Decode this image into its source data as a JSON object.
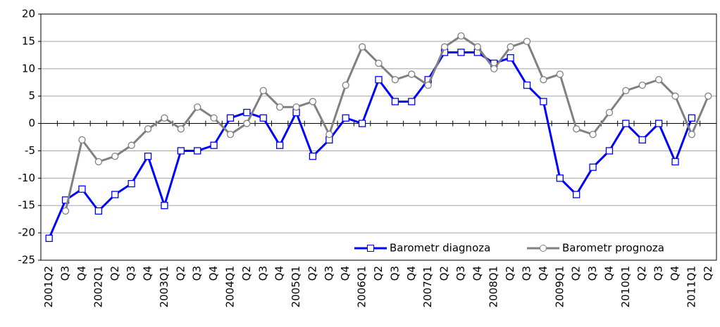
{
  "chart_data": {
    "type": "line",
    "categories": [
      "2001Q2",
      "Q3",
      "Q4",
      "2002Q1",
      "Q2",
      "Q3",
      "Q4",
      "2003Q1",
      "Q2",
      "Q3",
      "Q4",
      "2004Q1",
      "Q2",
      "Q3",
      "Q4",
      "2005Q1",
      "Q2",
      "Q3",
      "Q4",
      "2006Q1",
      "Q2",
      "Q3",
      "Q4",
      "2007Q1",
      "Q2",
      "Q3",
      "Q4",
      "2008Q1",
      "Q2",
      "Q3",
      "Q4",
      "2009Q1",
      "Q2",
      "Q3",
      "Q4",
      "2010Q1",
      "Q2",
      "Q3",
      "Q4",
      "2011Q1",
      "Q2"
    ],
    "series": [
      {
        "name": "Barometr diagnoza",
        "color": "#0000ff",
        "marker": "square",
        "values": [
          -21,
          -14,
          -12,
          -16,
          -13,
          -11,
          -6,
          -15,
          -5,
          -5,
          -4,
          1,
          2,
          1,
          -4,
          2,
          -6,
          -3,
          1,
          0,
          8,
          4,
          4,
          8,
          13,
          13,
          13,
          11,
          12,
          7,
          4,
          -10,
          -13,
          -8,
          -5,
          0,
          -3,
          0,
          -7,
          1,
          null
        ]
      },
      {
        "name": "Barometr prognoza",
        "color": "#808080",
        "marker": "circle",
        "values": [
          null,
          -16,
          -3,
          -7,
          -6,
          -4,
          -1,
          1,
          -1,
          3,
          1,
          -2,
          0,
          6,
          3,
          3,
          4,
          -2,
          7,
          14,
          11,
          8,
          9,
          7,
          14,
          16,
          14,
          10,
          14,
          15,
          8,
          9,
          -1,
          -2,
          2,
          6,
          7,
          8,
          5,
          -2,
          5
        ]
      }
    ],
    "ylim": [
      -25,
      20
    ],
    "yticks": [
      -25,
      -20,
      -15,
      -10,
      -5,
      0,
      5,
      10,
      15,
      20
    ],
    "grid": true,
    "legend": "lower right"
  }
}
